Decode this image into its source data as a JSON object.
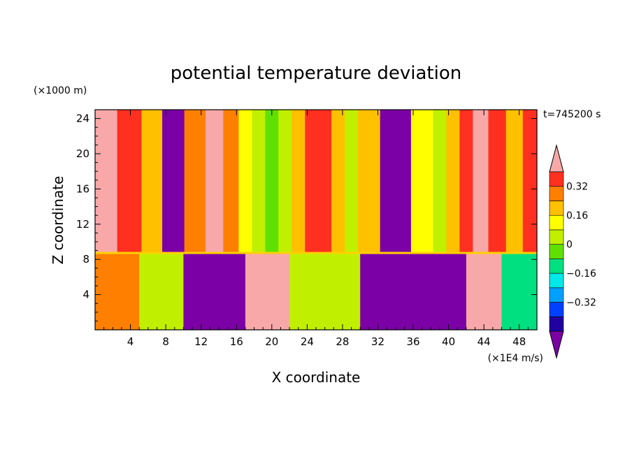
{
  "chart_data": {
    "type": "heatmap",
    "title": "potential temperature deviation",
    "xlabel": "X coordinate",
    "ylabel": "Z coordinate",
    "x_unit": "(×1E4 m/s)",
    "y_unit": "(×1000 m)",
    "time_label": "t=745200 s",
    "xlim": [
      0,
      50
    ],
    "ylim": [
      0,
      25
    ],
    "x_ticks": [
      "4",
      "8",
      "12",
      "16",
      "20",
      "24",
      "28",
      "32",
      "36",
      "40",
      "44",
      "48"
    ],
    "y_ticks": [
      "4",
      "8",
      "12",
      "16",
      "20",
      "24"
    ],
    "x_tick_values": [
      4,
      8,
      12,
      16,
      20,
      24,
      28,
      32,
      36,
      40,
      44,
      48
    ],
    "y_tick_values": [
      4,
      8,
      12,
      16,
      20,
      24
    ],
    "colorbar": {
      "levels": [
        -0.48,
        -0.4,
        -0.32,
        -0.24,
        -0.16,
        -0.08,
        0,
        0.08,
        0.16,
        0.24,
        0.32,
        0.4
      ],
      "tick_labels": [
        "0.32",
        "0.16",
        "0",
        "−0.16",
        "−0.32"
      ],
      "tick_values": [
        0.32,
        0.16,
        0,
        -0.16,
        -0.32
      ],
      "colors": [
        "#7b00a6",
        "#2000a0",
        "#0040ff",
        "#00a0ff",
        "#00e8e8",
        "#00e080",
        "#60e000",
        "#c0f000",
        "#ffff00",
        "#ffc000",
        "#ff8000",
        "#ff3020",
        "#f8a8a8"
      ]
    },
    "upper_layer_columns": [
      {
        "x_center": 1,
        "value": 0.44
      },
      {
        "x_center": 4,
        "value": 0.34
      },
      {
        "x_center": 6.5,
        "value": 0.22
      },
      {
        "x_center": 8.7,
        "value": -0.5
      },
      {
        "x_center": 11.5,
        "value": 0.3
      },
      {
        "x_center": 13.5,
        "value": 0.42
      },
      {
        "x_center": 15.5,
        "value": 0.3
      },
      {
        "x_center": 17,
        "value": 0.12
      },
      {
        "x_center": 18.5,
        "value": 0.02
      },
      {
        "x_center": 20,
        "value": -0.06
      },
      {
        "x_center": 21.5,
        "value": 0.02
      },
      {
        "x_center": 23,
        "value": 0.18
      },
      {
        "x_center": 24.5,
        "value": 0.36
      },
      {
        "x_center": 26,
        "value": 0.36
      },
      {
        "x_center": 27.5,
        "value": 0.18
      },
      {
        "x_center": 29,
        "value": 0.04
      },
      {
        "x_center": 30.5,
        "value": 0.18
      },
      {
        "x_center": 34,
        "value": -0.5
      },
      {
        "x_center": 37.5,
        "value": 0.1
      },
      {
        "x_center": 39,
        "value": 0.02
      },
      {
        "x_center": 40.5,
        "value": 0.2
      },
      {
        "x_center": 42,
        "value": 0.34
      },
      {
        "x_center": 43.5,
        "value": 0.44
      },
      {
        "x_center": 45.5,
        "value": 0.34
      },
      {
        "x_center": 47.5,
        "value": 0.18
      },
      {
        "x_center": 49.3,
        "value": 0.34
      }
    ],
    "lower_layer_regions": [
      {
        "x_range": [
          0,
          5
        ],
        "value": 0.3
      },
      {
        "x_range": [
          5,
          10
        ],
        "value": 0.0
      },
      {
        "x_range": [
          10,
          17
        ],
        "value": -0.5
      },
      {
        "x_range": [
          17,
          22
        ],
        "value": 0.44
      },
      {
        "x_range": [
          22,
          30
        ],
        "value": 0.04
      },
      {
        "x_range": [
          30,
          42
        ],
        "value": -0.5
      },
      {
        "x_range": [
          42,
          46
        ],
        "value": 0.44
      },
      {
        "x_range": [
          46,
          50
        ],
        "value": -0.1
      }
    ]
  }
}
